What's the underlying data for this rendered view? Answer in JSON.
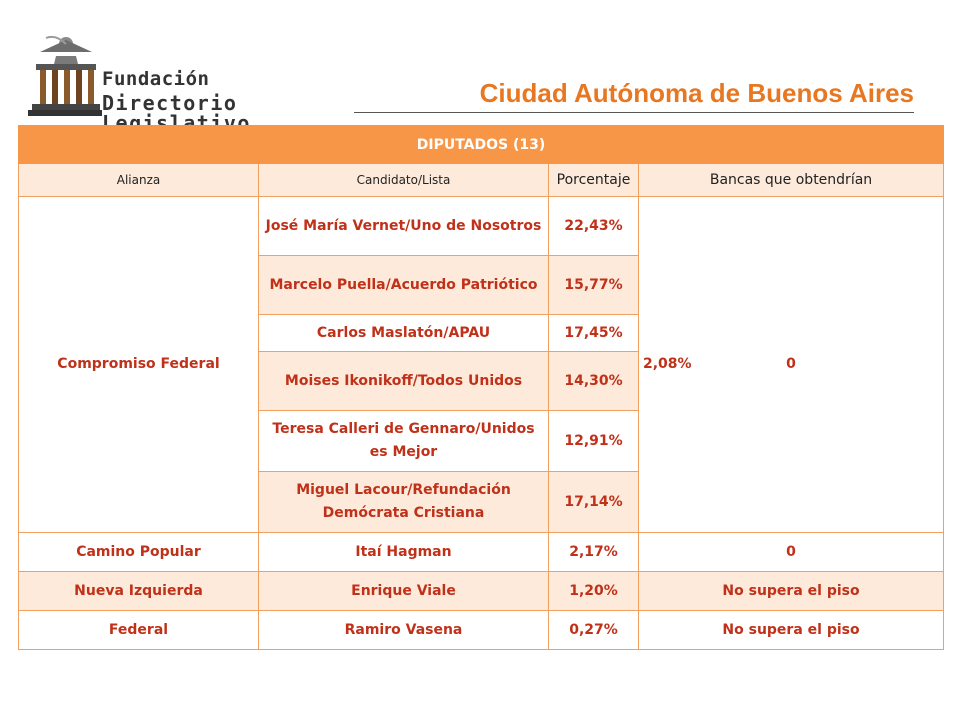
{
  "header": {
    "logo_line1": "Fundación",
    "logo_line2": "Directorio Legislativo",
    "title": "Ciudad Autónoma de Buenos Aires"
  },
  "colors": {
    "accent": "#E87722",
    "header_bg": "#F79646",
    "row_shade": "#FDEADA",
    "text_red": "#C0311A"
  },
  "table": {
    "title": "DIPUTADOS (13)",
    "columns": [
      "Alianza",
      "Candidato/Lista",
      "Porcentaje",
      "Bancas que obtendrían"
    ],
    "compromiso": {
      "alianza": "Compromiso Federal",
      "total": "2,08%",
      "bancas": "0",
      "candidates": [
        {
          "name": "José María Vernet/Uno de Nosotros",
          "pct": "22,43%"
        },
        {
          "name": "Marcelo Puella/Acuerdo Patriótico",
          "pct": "15,77%"
        },
        {
          "name": "Carlos Maslatón/APAU",
          "pct": "17,45%"
        },
        {
          "name": "Moises Ikonikoff/Todos Unidos",
          "pct": "14,30%"
        },
        {
          "name": "Teresa Calleri de Gennaro/Unidos es Mejor",
          "pct": "12,91%"
        },
        {
          "name": "Miguel Lacour/Refundación Demócrata Cristiana",
          "pct": "17,14%"
        }
      ]
    },
    "rows": [
      {
        "alianza": "Camino Popular",
        "candidato": "Itaí Hagman",
        "pct": "2,17%",
        "bancas": "0"
      },
      {
        "alianza": "Nueva Izquierda",
        "candidato": "Enrique Viale",
        "pct": "1,20%",
        "bancas": "No supera el piso"
      },
      {
        "alianza": "Federal",
        "candidato": "Ramiro Vasena",
        "pct": "0,27%",
        "bancas": "No supera el piso"
      }
    ]
  }
}
